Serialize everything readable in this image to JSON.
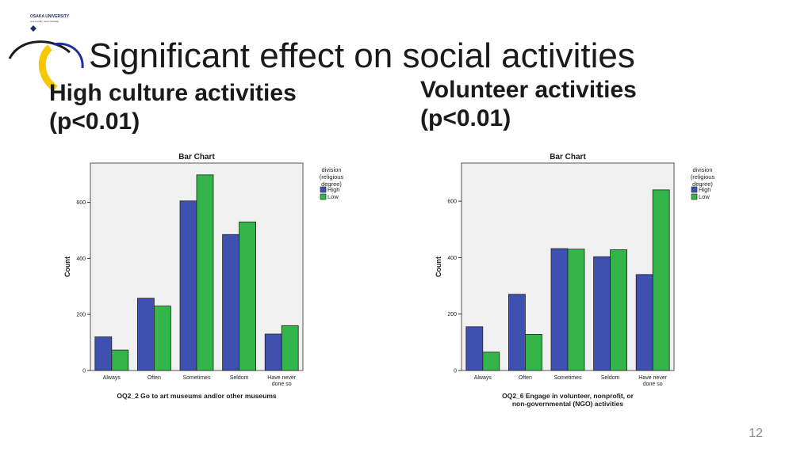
{
  "logo": {
    "text": "OSAKA UNIVERSITY",
    "sub": "Live Locally, Grow Globally"
  },
  "slide": {
    "title": "Significant effect on social activities",
    "page_number": "12"
  },
  "left": {
    "heading_line1": "High culture activities",
    "heading_line2": "(p<0.01)"
  },
  "right": {
    "heading_line1": "Volunteer activities",
    "heading_line2": "(p<0.01)"
  },
  "colors": {
    "high": "#3f51b0",
    "low": "#33b54a",
    "plot_bg": "#f0f0f0"
  },
  "chart_data": [
    {
      "type": "bar",
      "title": "Bar Chart",
      "categories": [
        "Always",
        "Often",
        "Sometimes",
        "Seldom",
        "Have never done so"
      ],
      "series": [
        {
          "name": "High",
          "values": [
            120,
            258,
            605,
            485,
            130
          ]
        },
        {
          "name": "Low",
          "values": [
            73,
            230,
            698,
            530,
            160
          ]
        }
      ],
      "xlabel": "OQ2_2 Go to art museums and/or other museums",
      "ylabel": "Count",
      "ylim": [
        0,
        740
      ],
      "yticks": [
        0,
        200,
        400,
        600
      ],
      "legend": {
        "title": "division (religious degree)",
        "position": "right"
      }
    },
    {
      "type": "bar",
      "title": "Bar Chart",
      "categories": [
        "Always",
        "Often",
        "Sometimes",
        "Seldom",
        "Have never done so"
      ],
      "series": [
        {
          "name": "High",
          "values": [
            155,
            270,
            432,
            403,
            340
          ]
        },
        {
          "name": "Low",
          "values": [
            65,
            128,
            430,
            428,
            640
          ]
        }
      ],
      "xlabel": "OQ2_6 Engage in volunteer, nonprofit, or non-governmental (NGO) activities",
      "ylabel": "Count",
      "ylim": [
        0,
        735
      ],
      "yticks": [
        0,
        200,
        400,
        600
      ],
      "legend": {
        "title": "division (religious degree)",
        "position": "right"
      }
    }
  ]
}
